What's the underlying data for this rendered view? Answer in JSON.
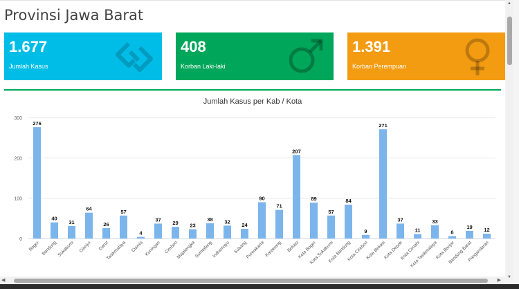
{
  "page": {
    "title": "Provinsi Jawa Barat"
  },
  "cards": [
    {
      "value": "1.677",
      "label": "Jumlah Kasus",
      "icon": "linked-squares-icon",
      "color": "#00bde8"
    },
    {
      "value": "408",
      "label": "Korban Laki-laki",
      "icon": "male-symbol-icon",
      "color": "#00a65a"
    },
    {
      "value": "1.391",
      "label": "Korban Perempuan",
      "icon": "female-symbol-icon",
      "color": "#f39c12"
    }
  ],
  "chart_data": {
    "type": "bar",
    "title": "Jumlah Kasus per Kab / Kota",
    "xlabel": "",
    "ylabel": "",
    "ylim": [
      0,
      300
    ],
    "yticks": [
      0,
      100,
      200,
      300
    ],
    "grid": true,
    "bar_color": "#7cb5ec",
    "categories": [
      "Bogor",
      "Bandung",
      "Sukabumi",
      "Cianjur",
      "Garut",
      "Tasikmalaya",
      "Ciamis",
      "Kuningan",
      "Cirebon",
      "Majalengka",
      "Sumedang",
      "Indramayu",
      "Subang",
      "Purwakarta",
      "Karawang",
      "Bekasi",
      "Kota Bogor",
      "Kota Sukabumi",
      "Kota Bandung",
      "Kota Cirebon",
      "Kota Bekasi",
      "Kota Depok",
      "Kota Cimahi",
      "Kota Tasikmalaya",
      "Kota Banjar",
      "Bandung Barat",
      "Pangandaran"
    ],
    "values": [
      276,
      40,
      31,
      64,
      26,
      57,
      4,
      37,
      29,
      23,
      38,
      32,
      24,
      90,
      71,
      207,
      89,
      57,
      84,
      9,
      271,
      37,
      11,
      33,
      6,
      19,
      12
    ]
  }
}
